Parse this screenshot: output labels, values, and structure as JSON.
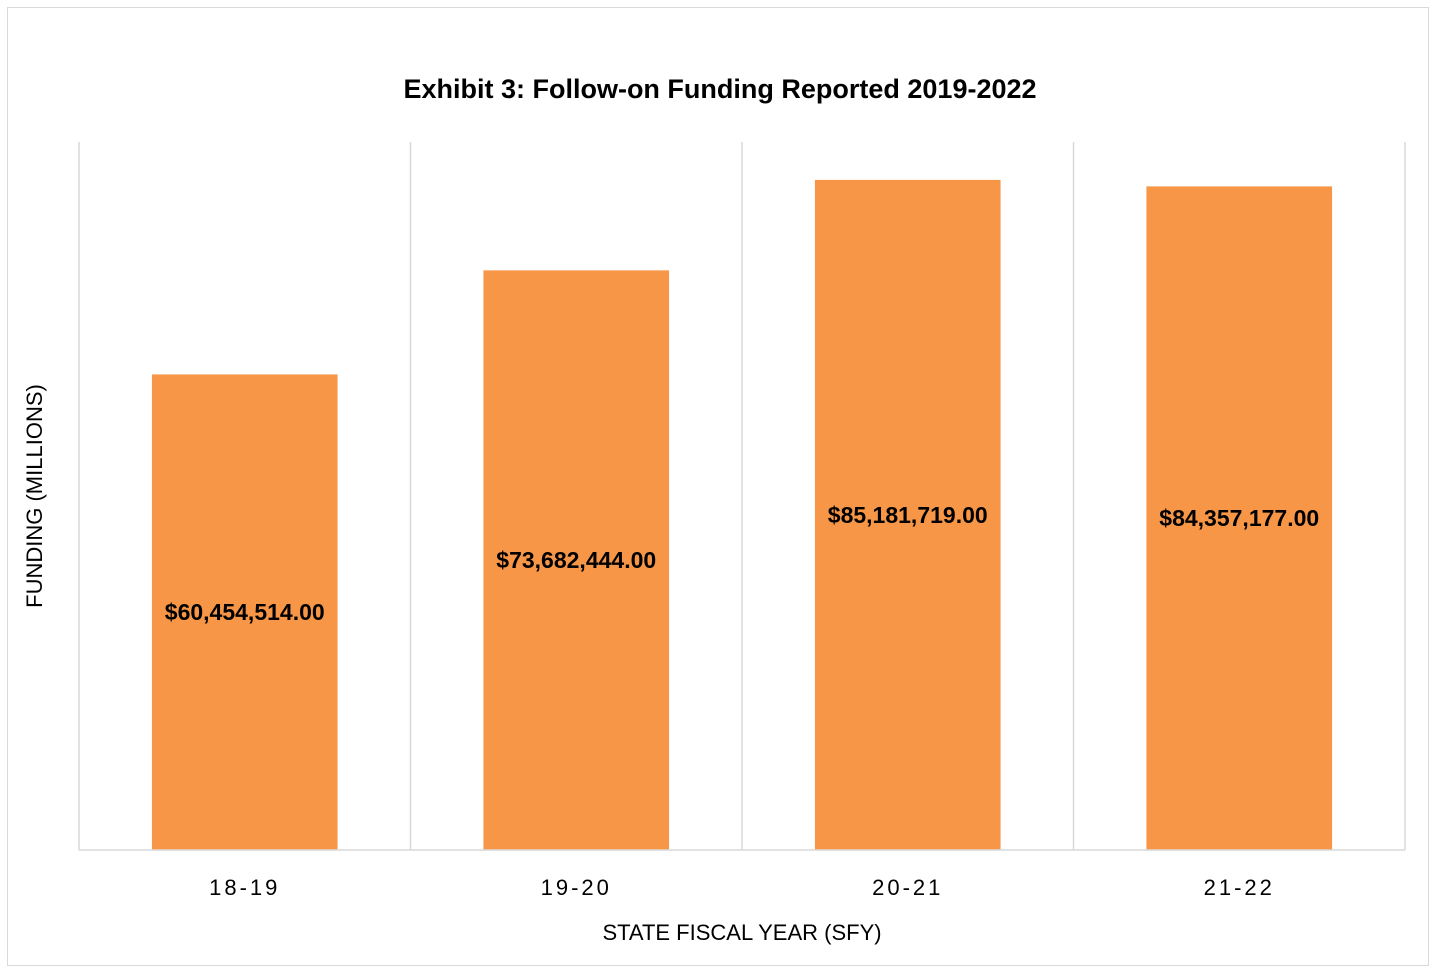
{
  "chart_data": {
    "type": "bar",
    "title": "Exhibit 3: Follow-on Funding Reported 2019-2022",
    "xlabel": "STATE FISCAL YEAR (SFY)",
    "ylabel": "FUNDING (MILLIONS)",
    "categories": [
      "18-19",
      "19-20",
      "20-21",
      "21-22"
    ],
    "values": [
      60454514,
      73682444,
      85181719,
      84357177
    ],
    "data_labels": [
      "$60,454,514.00",
      "$73,682,444.00",
      "$85,181,719.00",
      "$84,357,177.00"
    ],
    "ylim": [
      0,
      90000000
    ],
    "grid": "vertical category separators",
    "legend": "none",
    "bar_color": "#f79646"
  }
}
